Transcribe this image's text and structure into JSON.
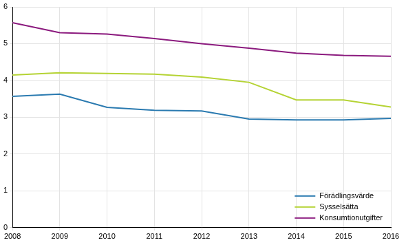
{
  "chart_data": {
    "type": "line",
    "categories": [
      "2008",
      "2009",
      "2010",
      "2011",
      "2012",
      "2013",
      "2014",
      "2015",
      "2016"
    ],
    "series": [
      {
        "name": "Förädlingsvärde",
        "color": "#2a7ab0",
        "values": [
          3.57,
          3.63,
          3.27,
          3.19,
          3.17,
          2.95,
          2.93,
          2.93,
          2.97
        ]
      },
      {
        "name": "Sysselsätta",
        "color": "#b5d334",
        "values": [
          4.15,
          4.21,
          4.19,
          4.17,
          4.09,
          3.95,
          3.47,
          3.47,
          3.28
        ]
      },
      {
        "name": "Konsumtionutgifter",
        "color": "#8b1a7e",
        "values": [
          5.57,
          5.3,
          5.26,
          5.14,
          5.0,
          4.88,
          4.74,
          4.68,
          4.66
        ]
      }
    ],
    "ylim": [
      0,
      6
    ],
    "yticks": [
      0,
      1,
      2,
      3,
      4,
      5,
      6
    ],
    "grid": true,
    "legend": "lower right"
  }
}
